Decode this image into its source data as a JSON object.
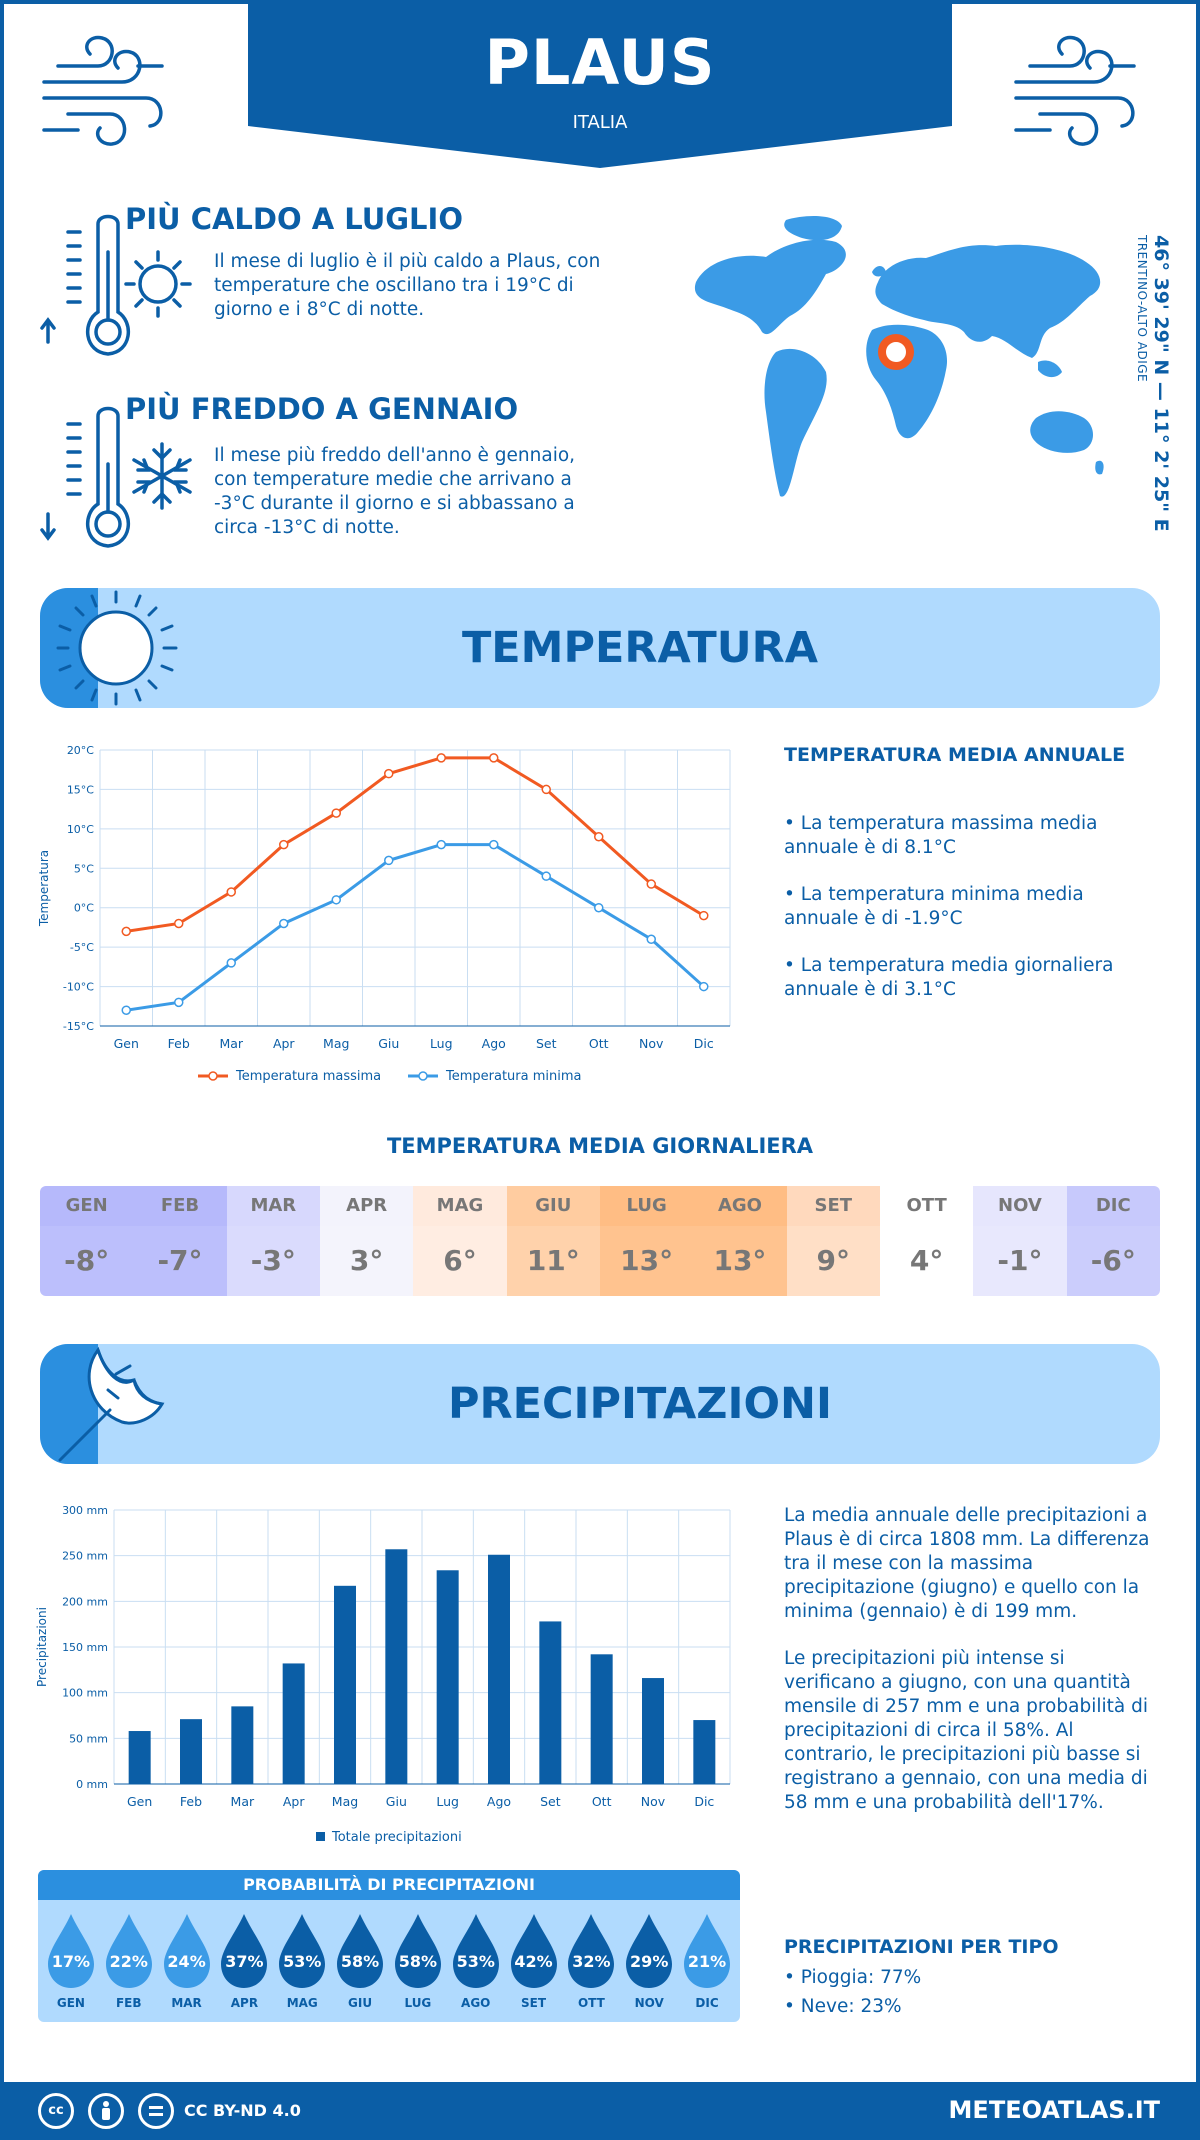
{
  "header": {
    "city": "PLAUS",
    "country": "ITALIA"
  },
  "facts": {
    "warm": {
      "title": "PIÙ CALDO A LUGLIO",
      "text": "Il mese di luglio è il più caldo a Plaus, con temperature che oscillano tra i 19°C di giorno e i 8°C di notte."
    },
    "cold": {
      "title": "PIÙ FREDDO A GENNAIO",
      "text": "Il mese più freddo dell'anno è gennaio, con temperature medie che arrivano a -3°C durante il giorno e si abbassano a circa -13°C di notte."
    }
  },
  "location": {
    "coords": "46° 39' 29\" N — 11° 2' 25\" E",
    "region": "TRENTINO-ALTO ADIGE"
  },
  "temperature_section": {
    "title": "TEMPERATURA",
    "annual_title": "TEMPERATURA MEDIA ANNUALE",
    "bullets": [
      "• La temperatura massima media annuale è di 8.1°C",
      "• La temperatura minima media annuale è di -1.9°C",
      "• La temperatura media giornaliera annuale è di 3.1°C"
    ],
    "daily_title": "TEMPERATURA MEDIA GIORNALIERA",
    "daily": [
      {
        "m": "GEN",
        "v": "-8°",
        "head": "#b6b9fb",
        "bg": "#bcbffc"
      },
      {
        "m": "FEB",
        "v": "-7°",
        "head": "#b6b9fb",
        "bg": "#bcbffc"
      },
      {
        "m": "MAR",
        "v": "-3°",
        "head": "#d7d8fd",
        "bg": "#dadbfd"
      },
      {
        "m": "APR",
        "v": "3°",
        "head": "#f3f3fc",
        "bg": "#f4f4fc"
      },
      {
        "m": "MAG",
        "v": "6°",
        "head": "#ffeadd",
        "bg": "#ffede2"
      },
      {
        "m": "GIU",
        "v": "11°",
        "head": "#ffcca0",
        "bg": "#ffd2ab"
      },
      {
        "m": "LUG",
        "v": "13°",
        "head": "#ffbd84",
        "bg": "#ffc38f"
      },
      {
        "m": "AGO",
        "v": "13°",
        "head": "#ffbd84",
        "bg": "#ffc38f"
      },
      {
        "m": "SET",
        "v": "9°",
        "head": "#ffd9bd",
        "bg": "#ffdfc6"
      },
      {
        "m": "OTT",
        "v": "4°",
        "head": "#ffffff",
        "bg": "#ffffff"
      },
      {
        "m": "NOV",
        "v": "-1°",
        "head": "#e6e6fd",
        "bg": "#e8e8fd"
      },
      {
        "m": "DIC",
        "v": "-6°",
        "head": "#c7c9fc",
        "bg": "#cbcdfc"
      }
    ]
  },
  "precip_section": {
    "title": "PRECIPITAZIONI",
    "para1": "La media annuale delle precipitazioni a Plaus è di circa 1808 mm. La differenza tra il mese con la massima precipitazione (giugno) e quello con la minima (gennaio) è di 199 mm.",
    "para2": "Le precipitazioni più intense si verificano a giugno, con una quantità mensile di 257 mm e una probabilità di precipitazioni di circa il 58%. Al contrario, le precipitazioni più basse si registrano a gennaio, con una media di 58 mm e una probabilità dell'17%.",
    "prob_title": "PROBABILITÀ DI PRECIPITAZIONI",
    "prob": [
      {
        "m": "GEN",
        "v": "17%",
        "c": "#3b9be6"
      },
      {
        "m": "FEB",
        "v": "22%",
        "c": "#3b9be6"
      },
      {
        "m": "MAR",
        "v": "24%",
        "c": "#3b9be6"
      },
      {
        "m": "APR",
        "v": "37%",
        "c": "#0b5ea6"
      },
      {
        "m": "MAG",
        "v": "53%",
        "c": "#0b5ea6"
      },
      {
        "m": "GIU",
        "v": "58%",
        "c": "#0b5ea6"
      },
      {
        "m": "LUG",
        "v": "58%",
        "c": "#0b5ea6"
      },
      {
        "m": "AGO",
        "v": "53%",
        "c": "#0b5ea6"
      },
      {
        "m": "SET",
        "v": "42%",
        "c": "#0b5ea6"
      },
      {
        "m": "OTT",
        "v": "32%",
        "c": "#0b5ea6"
      },
      {
        "m": "NOV",
        "v": "29%",
        "c": "#0b5ea6"
      },
      {
        "m": "DIC",
        "v": "21%",
        "c": "#3b9be6"
      }
    ],
    "type_title": "PRECIPITAZIONI PER TIPO",
    "types": [
      "• Pioggia: 77%",
      "• Neve: 23%"
    ]
  },
  "footer": {
    "license": "CC BY-ND 4.0",
    "site": "METEOATLAS.IT",
    "cc": "cc"
  },
  "chart_data": [
    {
      "type": "line",
      "categories": [
        "Gen",
        "Feb",
        "Mar",
        "Apr",
        "Mag",
        "Giu",
        "Lug",
        "Ago",
        "Set",
        "Ott",
        "Nov",
        "Dic"
      ],
      "series": [
        {
          "name": "Temperatura massima",
          "values": [
            -3,
            -2,
            2,
            8,
            12,
            17,
            19,
            19,
            15,
            9,
            3,
            -1
          ],
          "color": "#f15a22"
        },
        {
          "name": "Temperatura minima",
          "values": [
            -13,
            -12,
            -7,
            -2,
            1,
            6,
            8,
            8,
            4,
            0,
            -4,
            -10
          ],
          "color": "#3b9be6"
        }
      ],
      "ylabel": "Temperatura",
      "ylim": [
        -15,
        20
      ],
      "yticks": [
        "-15°C",
        "-10°C",
        "-5°C",
        "0°C",
        "5°C",
        "10°C",
        "15°C",
        "20°C"
      ],
      "grid": true,
      "legend": "bottom"
    },
    {
      "type": "bar",
      "categories": [
        "Gen",
        "Feb",
        "Mar",
        "Apr",
        "Mag",
        "Giu",
        "Lug",
        "Ago",
        "Set",
        "Ott",
        "Nov",
        "Dic"
      ],
      "series": [
        {
          "name": "Totale precipitazioni",
          "values": [
            58,
            71,
            85,
            132,
            217,
            257,
            234,
            251,
            178,
            142,
            116,
            70
          ],
          "color": "#0b5ea6"
        }
      ],
      "ylabel": "Precipitazioni",
      "ylim": [
        0,
        300
      ],
      "yticks": [
        "0 mm",
        "50 mm",
        "100 mm",
        "150 mm",
        "200 mm",
        "250 mm",
        "300 mm"
      ],
      "grid": true,
      "legend": "bottom"
    }
  ]
}
